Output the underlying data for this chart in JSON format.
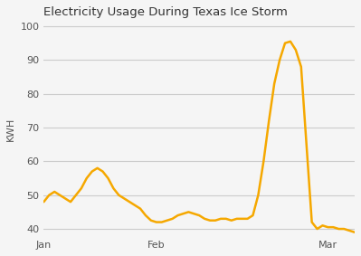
{
  "title": "Electricity Usage During Texas Ice Storm",
  "ylabel": "KWH",
  "line_color": "#F5A800",
  "line_width": 1.8,
  "background_color": "#f5f5f5",
  "ylim": [
    38,
    101
  ],
  "yticks": [
    40,
    50,
    60,
    70,
    80,
    90,
    100
  ],
  "x_values": [
    0,
    1,
    2,
    3,
    4,
    5,
    6,
    7,
    8,
    9,
    10,
    11,
    12,
    13,
    14,
    15,
    16,
    17,
    18,
    19,
    20,
    21,
    22,
    23,
    24,
    25,
    26,
    27,
    28,
    29,
    30,
    31,
    32,
    33,
    34,
    35,
    36,
    37,
    38,
    39,
    40,
    41,
    42,
    43,
    44,
    45,
    46,
    47,
    48,
    49,
    50,
    51,
    52,
    53,
    54,
    55,
    56,
    57,
    58
  ],
  "y_values": [
    48,
    50,
    51,
    50,
    49,
    48,
    50,
    52,
    55,
    57,
    58,
    57,
    55,
    52,
    50,
    49,
    48,
    47,
    46,
    44,
    42.5,
    42,
    42,
    42.5,
    43,
    44,
    44.5,
    45,
    44.5,
    44,
    43,
    42.5,
    42.5,
    43,
    43,
    42.5,
    43,
    43,
    43,
    44,
    50,
    60,
    72,
    83,
    90,
    95,
    95.5,
    93,
    88,
    65,
    42,
    40,
    41,
    40.5,
    40.5,
    40,
    40,
    39.5,
    39
  ],
  "xtick_positions": [
    0,
    21,
    53
  ],
  "xtick_labels": [
    "Jan",
    "Feb",
    "Mar"
  ]
}
